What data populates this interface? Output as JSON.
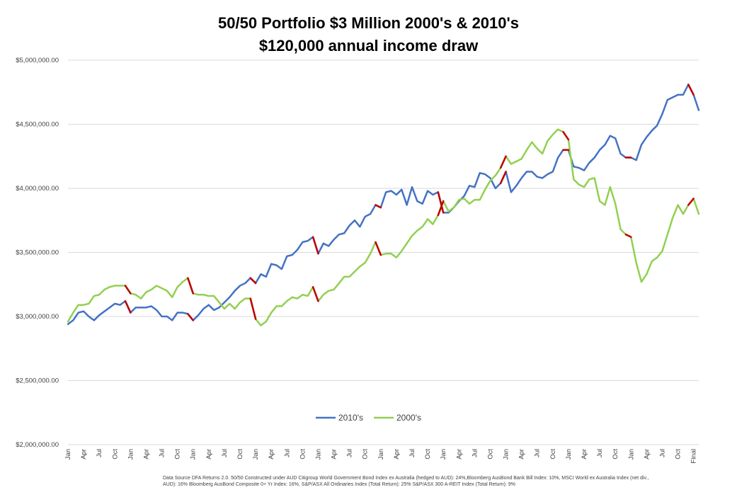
{
  "chart_data": {
    "type": "line",
    "title": "50/50 Portfolio $3 Million 2000's & 2010's",
    "subtitle": "$120,000 annual income draw",
    "xlabel": "",
    "ylabel": "",
    "ylim": [
      2000000,
      5000000
    ],
    "ytick_labels": [
      "$2,000,000.00",
      "$2,500,000.00",
      "$3,000,000.00",
      "$3,500,000.00",
      "$4,000,000.00",
      "$4,500,000.00",
      "$5,000,000.00"
    ],
    "x_tick_labels": [
      "Jan",
      "Apr",
      "Jul",
      "Oct",
      "Jan",
      "Apr",
      "Jul",
      "Oct",
      "Jan",
      "Apr",
      "Jul",
      "Oct",
      "Jan",
      "Apr",
      "Jul",
      "Oct",
      "Jan",
      "Apr",
      "Jul",
      "Oct",
      "Jan",
      "Apr",
      "Jul",
      "Oct",
      "Jan",
      "Apr",
      "Jul",
      "Oct",
      "Jan",
      "Apr",
      "Jul",
      "Oct",
      "Jan",
      "Apr",
      "Jul",
      "Oct",
      "Jan",
      "Apr",
      "Jul",
      "Oct",
      "Final"
    ],
    "grid": true,
    "legend": "bottom-center",
    "highlight_color": "#C00000",
    "series": [
      {
        "name": "2010's",
        "color": "#4472C4",
        "values": [
          2940000,
          2970000,
          3030000,
          3040000,
          3000000,
          2970000,
          3010000,
          3040000,
          3070000,
          3100000,
          3090000,
          3120000,
          3030000,
          3070000,
          3070000,
          3070000,
          3080000,
          3050000,
          3000000,
          3000000,
          2970000,
          3030000,
          3030000,
          3020000,
          2970000,
          3010000,
          3060000,
          3090000,
          3050000,
          3070000,
          3110000,
          3150000,
          3200000,
          3240000,
          3260000,
          3300000,
          3260000,
          3330000,
          3310000,
          3410000,
          3400000,
          3370000,
          3470000,
          3480000,
          3520000,
          3580000,
          3590000,
          3620000,
          3490000,
          3570000,
          3550000,
          3600000,
          3640000,
          3650000,
          3710000,
          3750000,
          3700000,
          3780000,
          3800000,
          3870000,
          3850000,
          3970000,
          3980000,
          3950000,
          3990000,
          3870000,
          4010000,
          3900000,
          3880000,
          3980000,
          3950000,
          3970000,
          3810000,
          3810000,
          3850000,
          3900000,
          3940000,
          4020000,
          4010000,
          4120000,
          4110000,
          4080000,
          4000000,
          4040000,
          4130000,
          3970000,
          4020000,
          4080000,
          4130000,
          4130000,
          4090000,
          4080000,
          4110000,
          4130000,
          4240000,
          4300000,
          4300000,
          4170000,
          4160000,
          4140000,
          4200000,
          4240000,
          4300000,
          4340000,
          4410000,
          4390000,
          4270000,
          4240000,
          4240000,
          4220000,
          4340000,
          4400000,
          4450000,
          4490000,
          4580000,
          4690000,
          4710000,
          4730000,
          4730000,
          4810000,
          4730000,
          4610000
        ],
        "red_drops_at_index": [
          12,
          24,
          36,
          48,
          60,
          72,
          84,
          96,
          108,
          120
        ]
      },
      {
        "name": "2000's",
        "color": "#92D050",
        "values": [
          2960000,
          3030000,
          3090000,
          3090000,
          3100000,
          3160000,
          3170000,
          3210000,
          3230000,
          3240000,
          3240000,
          3240000,
          3180000,
          3170000,
          3140000,
          3190000,
          3210000,
          3240000,
          3220000,
          3200000,
          3150000,
          3230000,
          3270000,
          3300000,
          3180000,
          3170000,
          3170000,
          3160000,
          3160000,
          3110000,
          3060000,
          3100000,
          3060000,
          3110000,
          3140000,
          3140000,
          2980000,
          2930000,
          2960000,
          3030000,
          3080000,
          3080000,
          3120000,
          3150000,
          3140000,
          3170000,
          3160000,
          3230000,
          3120000,
          3170000,
          3200000,
          3210000,
          3260000,
          3310000,
          3310000,
          3350000,
          3390000,
          3420000,
          3490000,
          3580000,
          3480000,
          3490000,
          3490000,
          3460000,
          3510000,
          3570000,
          3630000,
          3670000,
          3700000,
          3760000,
          3720000,
          3790000,
          3900000,
          3820000,
          3850000,
          3910000,
          3920000,
          3880000,
          3910000,
          3910000,
          3990000,
          4060000,
          4100000,
          4160000,
          4250000,
          4190000,
          4210000,
          4230000,
          4300000,
          4360000,
          4310000,
          4270000,
          4370000,
          4420000,
          4460000,
          4440000,
          4380000,
          4070000,
          4030000,
          4010000,
          4070000,
          4080000,
          3900000,
          3870000,
          4010000,
          3880000,
          3680000,
          3640000,
          3620000,
          3420000,
          3270000,
          3330000,
          3430000,
          3460000,
          3510000,
          3640000,
          3770000,
          3870000,
          3800000,
          3870000,
          3920000,
          3800000
        ],
        "red_drops_at_index": [
          12,
          24,
          36,
          48,
          60,
          72,
          84,
          96,
          108,
          120
        ]
      }
    ],
    "footnote": "Data Source DFA Returns 2.0. 50/50 Constructed under AUD Citigroup World Government Bond Index ex Australia (hedged to AUD): 24%,Bloomberg AusBond Bank Bill Index: 10%, MSCI World ex Australia Index (net div., AUD): 16% Bloomberg AusBond Composite 0+ Yr Index: 16%, S&P/ASX All Ordinaries Index (Total Return): 25% S&P/ASX 300 A-REIT Index (Total Return): 9%"
  }
}
